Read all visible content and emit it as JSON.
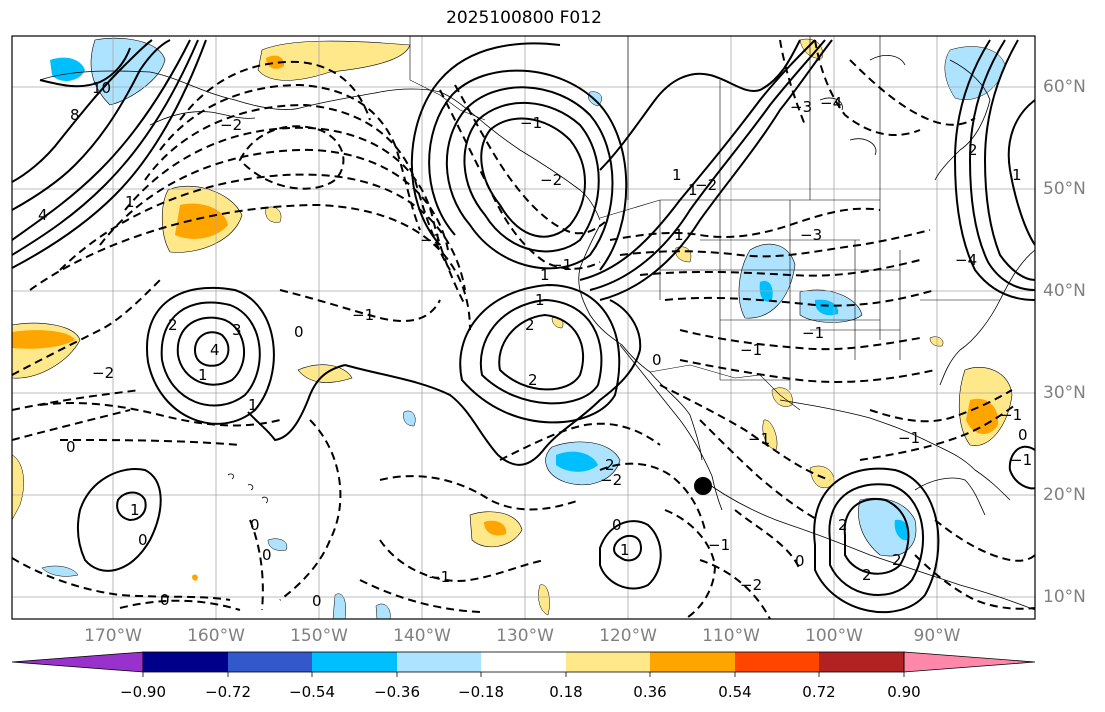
{
  "title": "2025100800 F012",
  "longitude_labels": [
    "170°W",
    "160°W",
    "150°W",
    "140°W",
    "130°W",
    "120°W",
    "110°W",
    "100°W",
    "90°W"
  ],
  "latitude_labels": [
    "60°N",
    "50°N",
    "40°N",
    "30°N",
    "20°N",
    "10°N"
  ],
  "colorbar": {
    "labels": [
      "−0.90",
      "−0.72",
      "−0.54",
      "−0.36",
      "−0.18",
      "0.18",
      "0.36",
      "0.54",
      "0.72",
      "0.90"
    ],
    "colors": [
      "#9932cc",
      "#00008b",
      "#3358cc",
      "#00bfff",
      "#aee3ff",
      "#ffffff",
      "#ffe88a",
      "#ffa500",
      "#ff4500",
      "#b22222",
      "#ff88aa"
    ]
  },
  "contour_labels": [
    "10",
    "8",
    "4",
    "1",
    "1",
    "2",
    "3",
    "4",
    "1",
    "1",
    "0",
    "−1",
    "−2",
    "−1",
    "−2",
    "2",
    "1",
    "−1",
    "1",
    "2",
    "−2",
    "−1",
    "−3",
    "−4",
    "0",
    "−1",
    "1",
    "0",
    "−2",
    "−2",
    "1",
    "0",
    "−1",
    "2",
    "−1",
    "0",
    "−1",
    "−1",
    "1",
    "2",
    "−4",
    "−3",
    "1",
    "−1",
    "1",
    "0",
    "0",
    "0",
    "0",
    "2",
    "−1",
    "−2",
    "−1",
    "2",
    "0",
    "2",
    "0"
  ],
  "marker": "storm-center-marker"
}
